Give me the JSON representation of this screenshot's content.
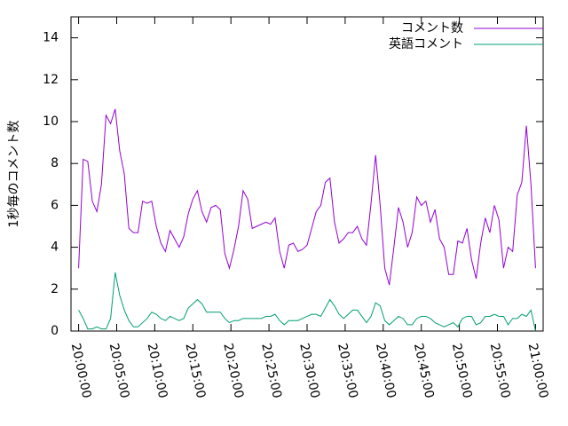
{
  "chart_data": {
    "type": "line",
    "y_label": "1秒毎のコメント数",
    "x": [
      "20:00:00",
      "20:00:36",
      "20:01:12",
      "20:01:48",
      "20:02:24",
      "20:03:00",
      "20:03:36",
      "20:04:12",
      "20:04:48",
      "20:05:24",
      "20:06:00",
      "20:06:36",
      "20:07:12",
      "20:07:48",
      "20:08:24",
      "20:09:00",
      "20:09:36",
      "20:10:12",
      "20:10:48",
      "20:11:24",
      "20:12:00",
      "20:12:36",
      "20:13:12",
      "20:13:48",
      "20:14:24",
      "20:15:00",
      "20:15:36",
      "20:16:12",
      "20:16:48",
      "20:17:24",
      "20:18:00",
      "20:18:36",
      "20:19:12",
      "20:19:48",
      "20:20:24",
      "20:21:00",
      "20:21:36",
      "20:22:12",
      "20:22:48",
      "20:23:24",
      "20:24:00",
      "20:24:36",
      "20:25:12",
      "20:25:48",
      "20:26:24",
      "20:27:00",
      "20:27:36",
      "20:28:12",
      "20:28:48",
      "20:29:24",
      "20:30:00",
      "20:30:36",
      "20:31:12",
      "20:31:48",
      "20:32:24",
      "20:33:00",
      "20:33:36",
      "20:34:12",
      "20:34:48",
      "20:35:24",
      "20:36:00",
      "20:36:36",
      "20:37:12",
      "20:37:48",
      "20:38:24",
      "20:39:00",
      "20:39:36",
      "20:40:12",
      "20:40:48",
      "20:41:24",
      "20:42:00",
      "20:42:36",
      "20:43:12",
      "20:43:48",
      "20:44:24",
      "20:45:00",
      "20:45:36",
      "20:46:12",
      "20:46:48",
      "20:47:24",
      "20:48:00",
      "20:48:36",
      "20:49:12",
      "20:49:48",
      "20:50:24",
      "20:51:00",
      "20:51:36",
      "20:52:12",
      "20:52:48",
      "20:53:24",
      "20:54:00",
      "20:54:36",
      "20:55:12",
      "20:55:48",
      "20:56:24",
      "20:57:00",
      "20:57:36",
      "20:58:12",
      "20:58:48",
      "20:59:24",
      "21:00:00"
    ],
    "series": [
      {
        "name": "コメント数",
        "color": "#9400d3",
        "values": [
          3.0,
          8.2,
          8.1,
          6.2,
          5.7,
          7.0,
          10.3,
          9.9,
          10.6,
          8.6,
          7.5,
          4.9,
          4.7,
          4.7,
          6.2,
          6.1,
          6.2,
          5.0,
          4.2,
          3.8,
          4.8,
          4.4,
          4.0,
          4.5,
          5.6,
          6.3,
          6.7,
          5.7,
          5.2,
          5.9,
          6.0,
          5.8,
          3.7,
          3.0,
          3.9,
          5.0,
          6.7,
          6.3,
          4.9,
          5.0,
          5.1,
          5.2,
          5.1,
          5.4,
          3.8,
          3.0,
          4.1,
          4.2,
          3.8,
          3.9,
          4.1,
          4.9,
          5.7,
          6.0,
          7.1,
          7.3,
          5.2,
          4.2,
          4.4,
          4.7,
          4.7,
          5.0,
          4.4,
          4.1,
          6.1,
          8.4,
          6.0,
          3.0,
          2.2,
          4.0,
          5.9,
          5.2,
          4.0,
          4.7,
          6.4,
          6.0,
          6.2,
          5.2,
          5.8,
          4.4,
          4.0,
          2.7,
          2.7,
          4.3,
          4.2,
          4.9,
          3.4,
          2.5,
          4.2,
          5.4,
          4.7,
          6.0,
          5.3,
          3.0,
          4.0,
          3.8,
          6.5,
          7.1,
          9.8,
          7.0,
          3.0
        ]
      },
      {
        "name": "英語コメント",
        "color": "#009e73",
        "values": [
          1.0,
          0.6,
          0.1,
          0.1,
          0.2,
          0.1,
          0.1,
          0.6,
          2.8,
          1.7,
          1.0,
          0.5,
          0.2,
          0.2,
          0.4,
          0.6,
          0.9,
          0.8,
          0.6,
          0.5,
          0.7,
          0.6,
          0.5,
          0.6,
          1.1,
          1.3,
          1.5,
          1.3,
          0.9,
          0.9,
          0.9,
          0.9,
          0.6,
          0.4,
          0.5,
          0.5,
          0.6,
          0.6,
          0.6,
          0.6,
          0.6,
          0.7,
          0.7,
          0.8,
          0.5,
          0.3,
          0.5,
          0.5,
          0.5,
          0.6,
          0.7,
          0.8,
          0.8,
          0.7,
          1.1,
          1.5,
          1.2,
          0.8,
          0.6,
          0.8,
          1.0,
          1.0,
          0.7,
          0.4,
          0.7,
          1.35,
          1.2,
          0.5,
          0.3,
          0.5,
          0.7,
          0.6,
          0.3,
          0.3,
          0.6,
          0.7,
          0.7,
          0.6,
          0.4,
          0.3,
          0.2,
          0.3,
          0.4,
          0.2,
          0.6,
          0.7,
          0.7,
          0.3,
          0.4,
          0.7,
          0.7,
          0.8,
          0.7,
          0.7,
          0.3,
          0.6,
          0.6,
          0.8,
          0.7,
          1.0,
          0.0
        ]
      }
    ],
    "xlim": [
      "19:59:00",
      "21:01:00"
    ],
    "xticks": [
      "20:00:00",
      "20:05:00",
      "20:10:00",
      "20:15:00",
      "20:20:00",
      "20:25:00",
      "20:30:00",
      "20:35:00",
      "20:40:00",
      "20:45:00",
      "20:50:00",
      "20:55:00",
      "21:00:00"
    ],
    "ylim": [
      0,
      15
    ],
    "yticks": [
      0,
      2,
      4,
      6,
      8,
      10,
      12,
      14
    ],
    "grid": false,
    "legend": "top-right"
  }
}
